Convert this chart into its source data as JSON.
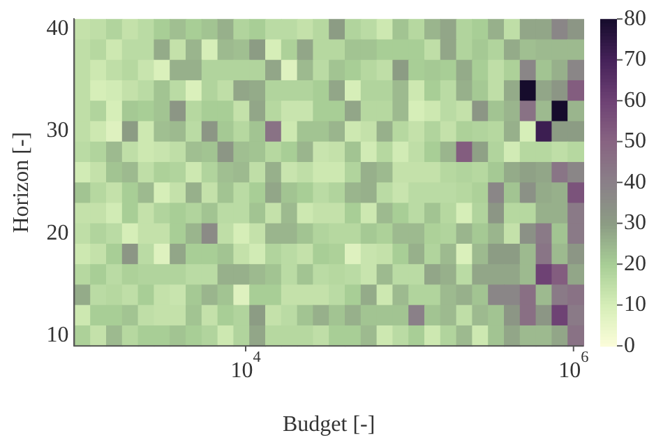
{
  "chart_data": {
    "type": "heatmap",
    "xlabel": "Budget [-]",
    "ylabel": "Horizon [-]",
    "log": "x",
    "xlim": [
      900,
      1150000
    ],
    "ylim": [
      9,
      41
    ],
    "xticks": [
      {
        "value": 10000,
        "label": "10$^{4}$"
      },
      {
        "value": 1000000,
        "label": "10$^{6}$"
      }
    ],
    "yticks": [
      10,
      20,
      30,
      40
    ],
    "clim": [
      0,
      80
    ],
    "cticks": [
      0,
      10,
      20,
      30,
      40,
      50,
      60,
      70,
      80
    ],
    "cells": [
      [
        14,
        15,
        18,
        14,
        16,
        20,
        23,
        20,
        22,
        26,
        18,
        20,
        16,
        16,
        14,
        17,
        30,
        18,
        16,
        12,
        22,
        17,
        25,
        28,
        18,
        20,
        26,
        15,
        28,
        28,
        38,
        32
      ],
      [
        15,
        17,
        12,
        16,
        16,
        27,
        14,
        25,
        10,
        24,
        23,
        30,
        10,
        19,
        28,
        17,
        17,
        22,
        22,
        20,
        20,
        20,
        15,
        28,
        18,
        21,
        18,
        27,
        23,
        24,
        24,
        24
      ],
      [
        15,
        12,
        15,
        17,
        13,
        9,
        26,
        26,
        18,
        18,
        18,
        18,
        28,
        8,
        24,
        16,
        22,
        20,
        17,
        15,
        30,
        20,
        21,
        20,
        27,
        20,
        15,
        19,
        38,
        22,
        26,
        38
      ],
      [
        15,
        10,
        11,
        14,
        16,
        22,
        16,
        9,
        18,
        15,
        28,
        27,
        18,
        18,
        18,
        20,
        28,
        10,
        18,
        18,
        24,
        12,
        20,
        16,
        26,
        21,
        15,
        27,
        80,
        28,
        32,
        52
      ],
      [
        15,
        18,
        10,
        21,
        20,
        22,
        32,
        17,
        20,
        20,
        14,
        28,
        17,
        13,
        13,
        20,
        20,
        28,
        17,
        17,
        24,
        10,
        12,
        16,
        14,
        32,
        22,
        25,
        45,
        24,
        80,
        25
      ],
      [
        15,
        12,
        8,
        30,
        12,
        23,
        24,
        16,
        32,
        21,
        17,
        22,
        45,
        12,
        22,
        22,
        25,
        12,
        14,
        26,
        17,
        14,
        18,
        14,
        19,
        18,
        17,
        26,
        10,
        72,
        30,
        30
      ],
      [
        16,
        18,
        24,
        15,
        12,
        13,
        15,
        23,
        22,
        32,
        23,
        22,
        17,
        20,
        25,
        13,
        14,
        22,
        11,
        17,
        11,
        15,
        20,
        25,
        52,
        29,
        18,
        11,
        17,
        17,
        15,
        17
      ],
      [
        11,
        14,
        22,
        24,
        15,
        19,
        18,
        12,
        18,
        23,
        24,
        15,
        26,
        13,
        15,
        12,
        12,
        18,
        26,
        24,
        14,
        14,
        14,
        17,
        18,
        17,
        21,
        27,
        29,
        28,
        44,
        38
      ],
      [
        22,
        17,
        14,
        20,
        24,
        10,
        14,
        26,
        14,
        22,
        16,
        20,
        28,
        22,
        20,
        16,
        18,
        25,
        26,
        16,
        13,
        16,
        16,
        16,
        17,
        19,
        38,
        22,
        34,
        27,
        26,
        55
      ],
      [
        14,
        14,
        11,
        20,
        14,
        18,
        20,
        18,
        22,
        16,
        16,
        22,
        14,
        24,
        12,
        14,
        14,
        20,
        12,
        24,
        20,
        16,
        22,
        17,
        10,
        18,
        32,
        17,
        17,
        26,
        26,
        42
      ],
      [
        15,
        18,
        16,
        10,
        14,
        14,
        20,
        25,
        36,
        15,
        10,
        14,
        25,
        25,
        22,
        18,
        17,
        17,
        21,
        19,
        24,
        24,
        19,
        18,
        25,
        21,
        25,
        14,
        34,
        42,
        22,
        42
      ],
      [
        12,
        14,
        20,
        32,
        16,
        8,
        28,
        20,
        20,
        22,
        14,
        11,
        18,
        16,
        14,
        20,
        19,
        8,
        13,
        14,
        20,
        26,
        18,
        24,
        9,
        24,
        30,
        30,
        24,
        44,
        24,
        32
      ],
      [
        17,
        20,
        16,
        19,
        18,
        18,
        18,
        16,
        16,
        26,
        26,
        24,
        22,
        16,
        22,
        16,
        17,
        16,
        13,
        24,
        16,
        16,
        28,
        26,
        16,
        28,
        28,
        28,
        24,
        60,
        52,
        28
      ],
      [
        27,
        16,
        17,
        15,
        20,
        14,
        13,
        21,
        25,
        22,
        8,
        20,
        20,
        14,
        14,
        14,
        16,
        20,
        27,
        12,
        24,
        18,
        18,
        24,
        26,
        22,
        38,
        38,
        46,
        24,
        42,
        45
      ],
      [
        12,
        20,
        20,
        22,
        15,
        14,
        14,
        22,
        14,
        20,
        18,
        30,
        14,
        16,
        22,
        26,
        22,
        26,
        22,
        22,
        22,
        40,
        22,
        24,
        15,
        24,
        22,
        32,
        46,
        32,
        60,
        42
      ],
      [
        19,
        14,
        24,
        17,
        20,
        20,
        22,
        20,
        18,
        12,
        18,
        28,
        17,
        17,
        17,
        15,
        20,
        20,
        24,
        12,
        16,
        20,
        12,
        18,
        24,
        12,
        22,
        28,
        24,
        24,
        28,
        45
      ]
    ]
  }
}
